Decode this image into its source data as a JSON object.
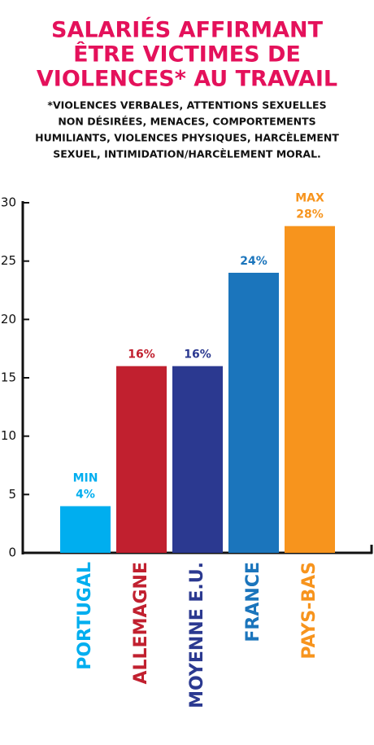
{
  "chart_data": {
    "type": "bar",
    "title": [
      "SALARIÉS AFFIRMANT",
      "ÊTRE VICTIMES DE",
      "VIOLENCES* AU TRAVAIL"
    ],
    "subtitle": [
      "*VIOLENCES VERBALES, ATTENTIONS SEXUELLES",
      "NON DÉSIRÉES, MENACES, COMPORTEMENTS",
      "HUMILIANTS, VIOLENCES PHYSIQUES, HARCÈLEMENT",
      "SEXUEL, INTIMIDATION/HARCÈLEMENT MORAL."
    ],
    "categories": [
      "PORTUGAL",
      "ALLEMAGNE",
      "MOYENNE E.U.",
      "FRANCE",
      "PAYS-BAS"
    ],
    "values": [
      4,
      16,
      16,
      24,
      28
    ],
    "value_labels": [
      "4%",
      "16%",
      "16%",
      "24%",
      "28%"
    ],
    "annotations": [
      "MIN",
      null,
      null,
      null,
      "MAX"
    ],
    "colors": [
      "#00aeef",
      "#c1202f",
      "#2b3990",
      "#1b75bc",
      "#f7941d"
    ],
    "title_color": "#e4115b",
    "ylim": [
      0,
      30
    ],
    "yticks": [
      0,
      5,
      10,
      15,
      20,
      25,
      30
    ]
  }
}
